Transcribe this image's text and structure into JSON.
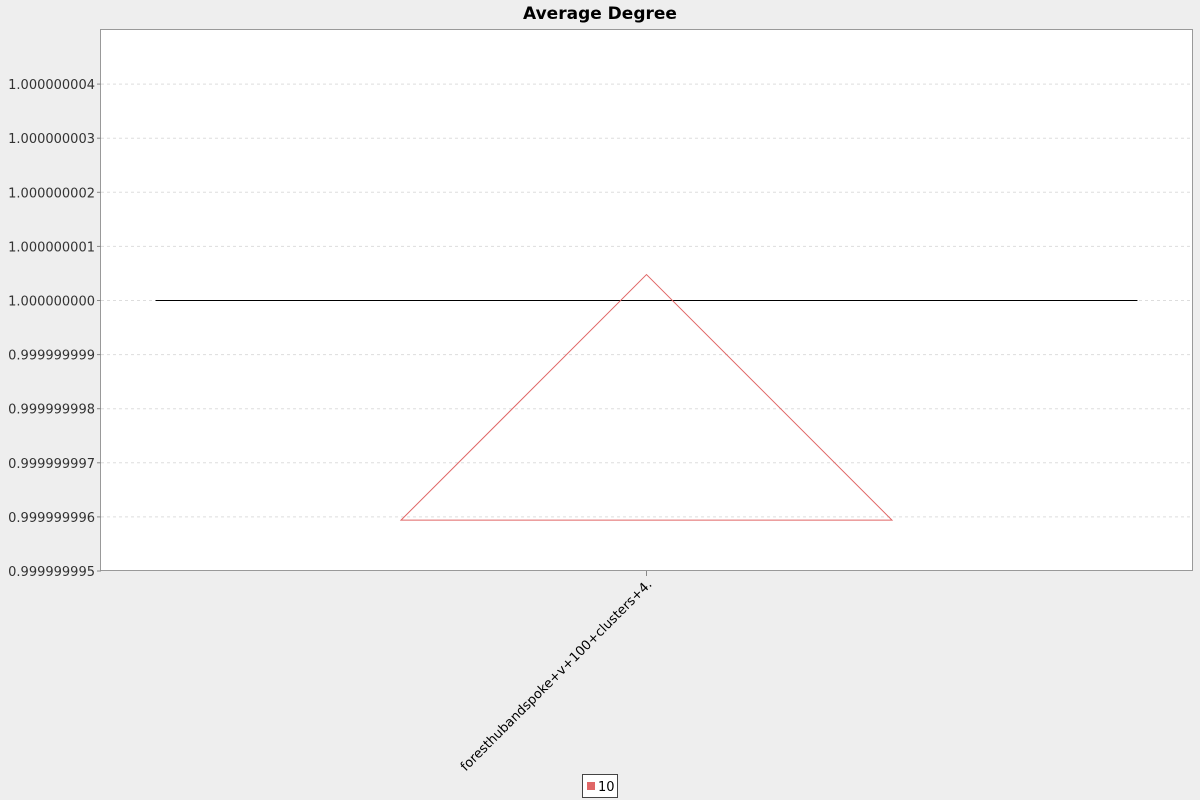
{
  "chart_data": {
    "type": "box",
    "title": "Average Degree",
    "xlabel": "",
    "ylabel": "",
    "categories": [
      "foresthubandspoke+v+100+clusters+4."
    ],
    "y_ticks": [
      "0.999999995",
      "0.999999996",
      "0.999999997",
      "0.999999998",
      "0.999999999",
      "1.000000000",
      "1.000000001",
      "1.000000002",
      "1.000000003",
      "1.000000004"
    ],
    "ylim": [
      0.999999995,
      1.000000005
    ],
    "series": [
      {
        "name": "10",
        "color": "#e06666",
        "median": 1.0,
        "mean_marker_top": 1.00000000048,
        "mean_marker_base": 0.99999999594
      }
    ],
    "grid": true,
    "legend_position": "bottom"
  }
}
